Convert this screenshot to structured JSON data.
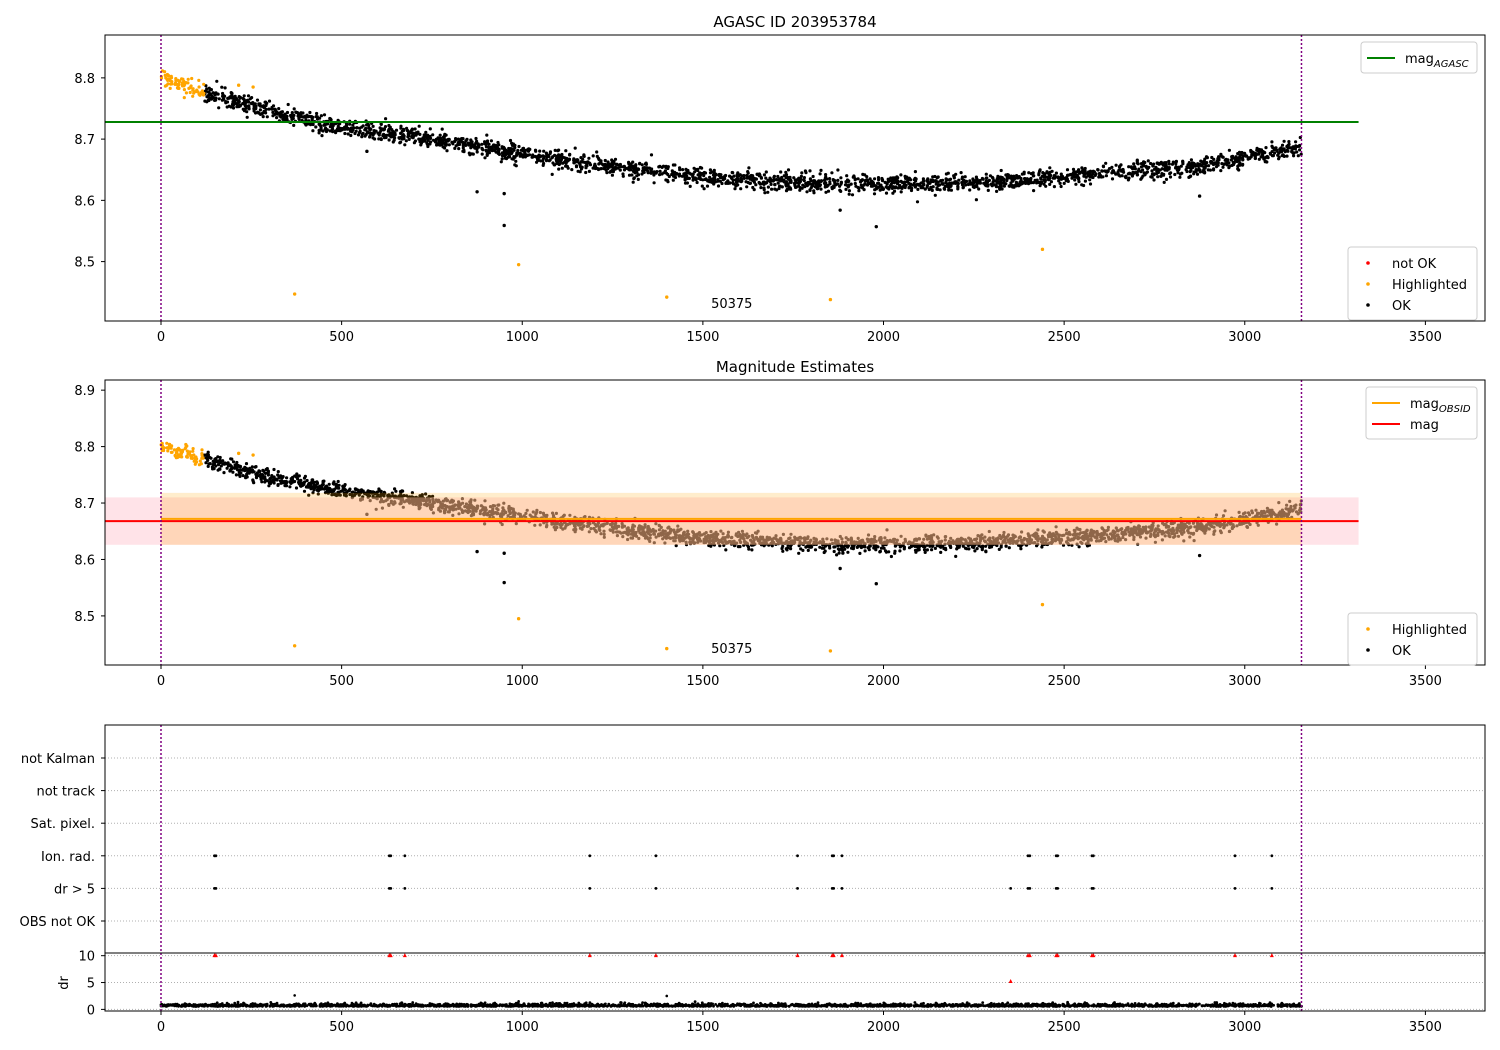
{
  "chart_data": [
    {
      "type": "scatter",
      "title": "AGASC ID 203953784",
      "xlim": [
        -155,
        3665
      ],
      "ylim": [
        8.403,
        8.87
      ],
      "xticks": [
        0,
        500,
        1000,
        1500,
        2000,
        2500,
        3000,
        3500
      ],
      "yticks": [
        8.5,
        8.6,
        8.7,
        8.8
      ],
      "vlines": [
        0,
        3157
      ],
      "hlines": [
        {
          "name": "mag_AGASC",
          "y": 8.728,
          "xmin": -155,
          "xmax": 3315,
          "color": "#008000"
        }
      ],
      "trend": [
        [
          0,
          8.8
        ],
        [
          100,
          8.78
        ],
        [
          300,
          8.745
        ],
        [
          500,
          8.72
        ],
        [
          700,
          8.705
        ],
        [
          900,
          8.685
        ],
        [
          1100,
          8.668
        ],
        [
          1300,
          8.652
        ],
        [
          1500,
          8.638
        ],
        [
          1700,
          8.63
        ],
        [
          1900,
          8.627
        ],
        [
          2100,
          8.627
        ],
        [
          2300,
          8.63
        ],
        [
          2500,
          8.638
        ],
        [
          2700,
          8.648
        ],
        [
          2900,
          8.658
        ],
        [
          3150,
          8.688
        ]
      ],
      "scatter_sigma": 0.007,
      "highlight_range": [
        0,
        120
      ],
      "highlighted_points": [
        [
          215,
          8.788
        ],
        [
          255,
          8.785
        ],
        [
          370,
          8.447
        ],
        [
          990,
          8.495
        ],
        [
          1400,
          8.442
        ],
        [
          1853,
          8.438
        ],
        [
          2440,
          8.52
        ]
      ],
      "ok_outliers": [
        [
          875,
          8.614
        ],
        [
          950,
          8.611
        ],
        [
          950,
          8.559
        ],
        [
          1880,
          8.584
        ],
        [
          1980,
          8.557
        ],
        [
          2875,
          8.607
        ],
        [
          570,
          8.68
        ]
      ],
      "annotations": [
        {
          "text": "50375",
          "x": 1580,
          "y": 8.424
        }
      ],
      "legends": [
        {
          "placement": "top-right",
          "entries": [
            {
              "label": "mag",
              "sub": "AGASC",
              "color": "#008000",
              "kind": "line"
            }
          ]
        },
        {
          "placement": "lower-right",
          "entries": [
            {
              "label": "not OK",
              "color": "#ff0000",
              "kind": "dot"
            },
            {
              "label": "Highlighted",
              "color": "#ffa500",
              "kind": "dot"
            },
            {
              "label": "OK",
              "color": "#000000",
              "kind": "dot"
            }
          ]
        }
      ]
    },
    {
      "type": "scatter",
      "title": "Magnitude Estimates",
      "xlim": [
        -155,
        3665
      ],
      "ylim": [
        8.413,
        8.918
      ],
      "xticks": [
        0,
        500,
        1000,
        1500,
        2000,
        2500,
        3000,
        3500
      ],
      "yticks": [
        8.5,
        8.6,
        8.7,
        8.8,
        8.9
      ],
      "vlines": [
        0,
        3157
      ],
      "bands": [
        {
          "name": "mag band",
          "y0": 8.626,
          "y1": 8.71,
          "xmin": -155,
          "xmax": 3315,
          "color": "#ffc0cb",
          "opacity": 0.45
        },
        {
          "name": "mag_OBSID band",
          "y0": 8.626,
          "y1": 8.718,
          "xmin": 0,
          "xmax": 3157,
          "color": "#ffa500",
          "opacity": 0.2
        }
      ],
      "hlines": [
        {
          "name": "mag",
          "y": 8.668,
          "xmin": -155,
          "xmax": 3315,
          "color": "#ff0000"
        },
        {
          "name": "mag_OBSID",
          "y": 8.672,
          "xmin": 0,
          "xmax": 3157,
          "color": "#ffa500"
        }
      ],
      "trend": [
        [
          0,
          8.8
        ],
        [
          100,
          8.78
        ],
        [
          300,
          8.745
        ],
        [
          500,
          8.72
        ],
        [
          700,
          8.705
        ],
        [
          900,
          8.685
        ],
        [
          1100,
          8.668
        ],
        [
          1300,
          8.652
        ],
        [
          1500,
          8.638
        ],
        [
          1700,
          8.63
        ],
        [
          1900,
          8.627
        ],
        [
          2100,
          8.627
        ],
        [
          2300,
          8.63
        ],
        [
          2500,
          8.638
        ],
        [
          2700,
          8.648
        ],
        [
          2900,
          8.658
        ],
        [
          3150,
          8.688
        ]
      ],
      "scatter_sigma": 0.007,
      "highlight_range": [
        0,
        120
      ],
      "highlighted_points": [
        [
          215,
          8.788
        ],
        [
          255,
          8.785
        ],
        [
          370,
          8.447
        ],
        [
          990,
          8.495
        ],
        [
          1400,
          8.442
        ],
        [
          1853,
          8.438
        ],
        [
          2440,
          8.52
        ]
      ],
      "ok_outliers": [
        [
          875,
          8.614
        ],
        [
          950,
          8.611
        ],
        [
          950,
          8.559
        ],
        [
          1880,
          8.584
        ],
        [
          1980,
          8.557
        ],
        [
          2875,
          8.607
        ],
        [
          570,
          8.68
        ]
      ],
      "annotations": [
        {
          "text": "50375",
          "x": 1580,
          "y": 8.434
        }
      ],
      "legends": [
        {
          "placement": "top-right",
          "entries": [
            {
              "label": "mag",
              "sub": "OBSID",
              "color": "#ffa500",
              "kind": "line"
            },
            {
              "label": "mag",
              "sub": "",
              "color": "#ff0000",
              "kind": "line"
            }
          ]
        },
        {
          "placement": "lower-right",
          "entries": [
            {
              "label": "Highlighted",
              "color": "#ffa500",
              "kind": "dot"
            },
            {
              "label": "OK",
              "color": "#000000",
              "kind": "dot"
            }
          ]
        }
      ]
    },
    {
      "type": "scatter",
      "title": "",
      "xlim": [
        -155,
        3665
      ],
      "categories": [
        "OBS not OK",
        "dr > 5",
        "Ion. rad.",
        "Sat. pixel.",
        "not track",
        "not Kalman"
      ],
      "vlines": [
        0,
        3157
      ],
      "flags": {
        "Ion. rad.": [
          148,
          152,
          632,
          636,
          675,
          1187,
          1370,
          1762,
          1858,
          1862,
          1885,
          2400,
          2405,
          2478,
          2482,
          2577,
          2581,
          2973,
          3075
        ],
        "dr > 5": [
          148,
          152,
          632,
          636,
          675,
          1187,
          1370,
          1762,
          1858,
          1862,
          1885,
          2352,
          2400,
          2405,
          2478,
          2482,
          2577,
          2581,
          2973,
          3075
        ]
      }
    },
    {
      "type": "scatter",
      "title": "",
      "ylabel": "dr",
      "xlim": [
        -155,
        3665
      ],
      "ylim": [
        -0.3,
        10.5
      ],
      "xticks": [
        0,
        500,
        1000,
        1500,
        2000,
        2500,
        3000,
        3500
      ],
      "yticks": [
        0,
        5,
        10
      ],
      "vlines": [
        0,
        3157
      ],
      "high_dr_points": [
        [
          148,
          10
        ],
        [
          152,
          10
        ],
        [
          632,
          10
        ],
        [
          636,
          10
        ],
        [
          675,
          10
        ],
        [
          1187,
          10
        ],
        [
          1370,
          10
        ],
        [
          1762,
          10
        ],
        [
          1858,
          10
        ],
        [
          1862,
          10
        ],
        [
          1885,
          10
        ],
        [
          2352,
          5.2
        ],
        [
          2400,
          10
        ],
        [
          2405,
          10
        ],
        [
          2478,
          10
        ],
        [
          2482,
          10
        ],
        [
          2577,
          10
        ],
        [
          2581,
          10
        ],
        [
          2973,
          10
        ],
        [
          3075,
          10
        ]
      ],
      "dr_outliers": [
        [
          370,
          2.6
        ],
        [
          990,
          1.5
        ],
        [
          1400,
          2.5
        ],
        [
          2440,
          1.1
        ]
      ]
    }
  ]
}
